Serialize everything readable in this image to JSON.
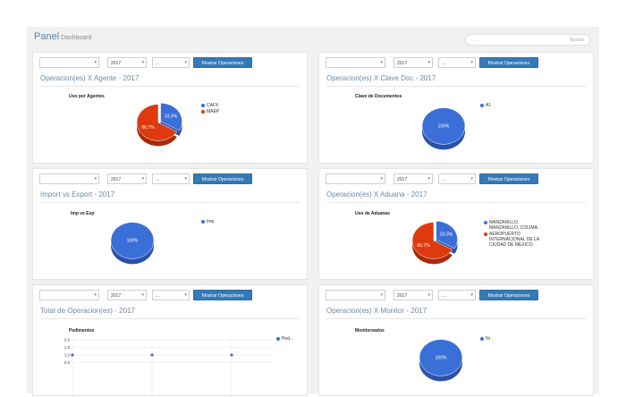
{
  "header": {
    "title": "Panel",
    "subtitle": "Dashboard",
    "search_placeholder": "...",
    "search_label": "Buscar"
  },
  "colors": {
    "blue": "#3b6fd8",
    "red": "#dd3a10",
    "button": "#337ab7"
  },
  "panels": [
    {
      "controls": {
        "select1": "",
        "year": "2017",
        "select3": "...",
        "button": "Mostrar Operaciones"
      },
      "title": "Operacion(es) X Agente - 2017",
      "chart_title": "Uso por Agentes",
      "legend": [
        "CAFX",
        "MAEP"
      ],
      "slices": [
        {
          "label": "33.3%",
          "value": 33.3
        },
        {
          "label": "66.7%",
          "value": 66.7
        }
      ]
    },
    {
      "controls": {
        "select1": "",
        "year": "2017",
        "select3": "...",
        "button": "Mostrar Operaciones"
      },
      "title": "Operacion(es) X Clave Doc - 2017",
      "chart_title": "Clave de Documentos",
      "legend": [
        "A1"
      ],
      "slices": [
        {
          "label": "100%",
          "value": 100
        }
      ]
    },
    {
      "controls": {
        "select1": "",
        "year": "2017",
        "select3": "...",
        "button": "Mostrar Operaciones"
      },
      "title": "Import vs Export - 2017",
      "chart_title": "Imp vs Exp",
      "legend": [
        "Imp"
      ],
      "slices": [
        {
          "label": "100%",
          "value": 100
        }
      ]
    },
    {
      "controls": {
        "select1": "",
        "year": "2017",
        "select3": "...",
        "button": "Mostrar Operaciones"
      },
      "title": "Operacion(es) X Aduana - 2017",
      "chart_title": "Uso de Aduanas",
      "legend": [
        "MANZANILLO, MANZANILLO, COLIMA.",
        "AEROPUERTO INTERNACIONAL DE LA CIUDAD DE MEXICO."
      ],
      "slices": [
        {
          "label": "33.3%",
          "value": 33.3
        },
        {
          "label": "66.7%",
          "value": 66.7
        }
      ]
    },
    {
      "controls": {
        "select1": "",
        "year": "2017",
        "select3": "...",
        "button": "Mostrar Operaciones"
      },
      "title": "Total de Operacion(es) - 2017",
      "chart_title": "Pedimentos",
      "legend": [
        "Ped..."
      ],
      "y_ticks": [
        "2.0",
        "1.5",
        "1.0",
        "0.5"
      ]
    },
    {
      "controls": {
        "select1": "",
        "year": "2017",
        "select3": "...",
        "button": "Mostrar Operaciones"
      },
      "title": "Operacion(es) X Monitor - 2017",
      "chart_title": "Monitoreados",
      "legend": [
        "Nr"
      ],
      "slices": [
        {
          "label": "100%",
          "value": 100
        }
      ]
    }
  ],
  "chart_data": [
    {
      "type": "pie",
      "title": "Uso por Agentes",
      "categories": [
        "CAFX",
        "MAEP"
      ],
      "values": [
        33.3,
        66.7
      ]
    },
    {
      "type": "pie",
      "title": "Clave de Documentos",
      "categories": [
        "A1"
      ],
      "values": [
        100
      ]
    },
    {
      "type": "pie",
      "title": "Imp vs Exp",
      "categories": [
        "Imp"
      ],
      "values": [
        100
      ]
    },
    {
      "type": "pie",
      "title": "Uso de Aduanas",
      "categories": [
        "MANZANILLO, MANZANILLO, COLIMA.",
        "AEROPUERTO INTERNACIONAL DE LA CIUDAD DE MEXICO."
      ],
      "values": [
        33.3,
        66.7
      ]
    },
    {
      "type": "line",
      "title": "Pedimentos",
      "series": [
        {
          "name": "Ped...",
          "values": [
            1.0,
            1.0,
            1.0
          ]
        }
      ],
      "y_ticks": [
        2.0,
        1.5,
        1.0,
        0.5
      ]
    },
    {
      "type": "pie",
      "title": "Monitoreados",
      "categories": [
        "Nr"
      ],
      "values": [
        100
      ]
    }
  ]
}
